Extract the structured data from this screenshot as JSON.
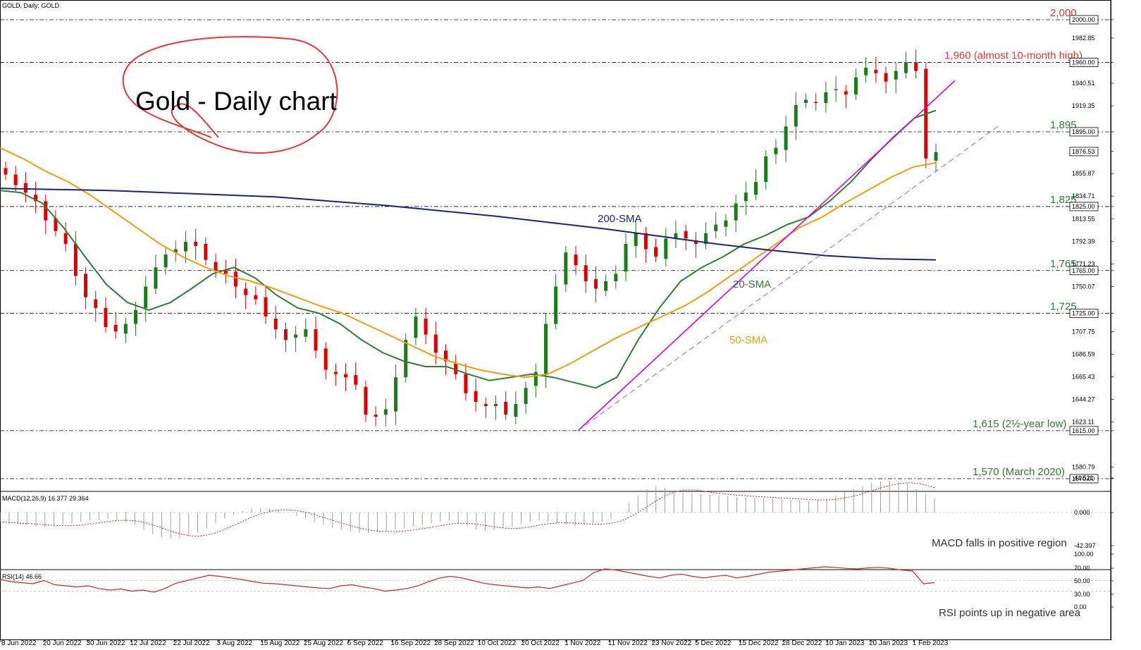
{
  "header": {
    "symbol_caption": "GOLD, Daily:  GOLD"
  },
  "chart_data": {
    "type": "candlestick",
    "title": "Gold - Daily chart",
    "price_axis": {
      "ylim": [
        1565,
        2010
      ],
      "tick_labels": [
        "2000.00",
        "1982.85",
        "1960.00",
        "1940.51",
        "1919.35",
        "1895.00",
        "1876.53",
        "1855.87",
        "1834.71",
        "1825.00",
        "1813.55",
        "1792.39",
        "1771.23",
        "1765.00",
        "1750.07",
        "1725.00",
        "1707.75",
        "1686.59",
        "1665.43",
        "1644.27",
        "1623.11",
        "1615.00",
        "1580.79",
        "1570.00"
      ],
      "tick_values": [
        2000,
        1982.85,
        1960,
        1940.51,
        1919.35,
        1895,
        1876.53,
        1855.87,
        1834.71,
        1825,
        1813.55,
        1792.39,
        1771.23,
        1765,
        1750.07,
        1725,
        1707.75,
        1686.59,
        1665.43,
        1644.27,
        1623.11,
        1615,
        1580.79,
        1570
      ],
      "highlighted": [
        "2000.00",
        "1960.00",
        "1895.00",
        "1876.53",
        "1825.00",
        "1765.00",
        "1725.00",
        "1615.00",
        "1570.00"
      ]
    },
    "x_axis": {
      "date_labels": [
        "8 Jun 2022",
        "20 Jun 2022",
        "30 Jun 2022",
        "12 Jul 2022",
        "22 Jul 2022",
        "3 Aug 2022",
        "15 Aug 2022",
        "25 Aug 2022",
        "6 Sep 2022",
        "16 Sep 2022",
        "28 Sep 2022",
        "10 Oct 2022",
        "20 Oct 2022",
        "1 Nov 2022",
        "11 Nov 2022",
        "23 Nov 2022",
        "5 Dec 2022",
        "15 Dec 2022",
        "28 Dec 2022",
        "10 Jan 2023",
        "20 Jan 2023",
        "1 Feb 2023"
      ]
    },
    "levels": [
      {
        "value": 2000,
        "label": "2,000",
        "color": "#e53935"
      },
      {
        "value": 1960,
        "label": "1,960 (almost 10-month high)",
        "color": "#e53935"
      },
      {
        "value": 1895,
        "label": "1,895",
        "color": "#2e7d32"
      },
      {
        "value": 1825,
        "label": "1,825",
        "color": "#2e7d32"
      },
      {
        "value": 1765,
        "label": "1,765",
        "color": "#2e7d32"
      },
      {
        "value": 1725,
        "label": "1,725",
        "color": "#2e7d32"
      },
      {
        "value": 1615,
        "label": "1,615 (2½-year low)",
        "color": "#2e7d32"
      },
      {
        "value": 1570,
        "label": "1,570 (March 2020)",
        "color": "#2e7d32"
      }
    ],
    "close_path": [
      1855,
      1845,
      1838,
      1830,
      1812,
      1802,
      1790,
      1760,
      1740,
      1730,
      1712,
      1708,
      1715,
      1728,
      1750,
      1768,
      1780,
      1785,
      1792,
      1788,
      1775,
      1765,
      1762,
      1750,
      1742,
      1738,
      1722,
      1710,
      1700,
      1705,
      1710,
      1690,
      1672,
      1668,
      1665,
      1658,
      1630,
      1628,
      1635,
      1665,
      1700,
      1722,
      1705,
      1688,
      1680,
      1668,
      1650,
      1642,
      1638,
      1640,
      1630,
      1640,
      1655,
      1670,
      1715,
      1750,
      1782,
      1770,
      1755,
      1748,
      1755,
      1762,
      1790,
      1800,
      1785,
      1778,
      1795,
      1800,
      1795,
      1790,
      1800,
      1808,
      1812,
      1828,
      1838,
      1848,
      1872,
      1880,
      1900,
      1920,
      1925,
      1922,
      1932,
      1935,
      1930,
      1946,
      1955,
      1950,
      1942,
      1952,
      1960,
      1952,
      1870,
      1876
    ],
    "series": [
      {
        "name": "20-SMA",
        "color": "#2e7d32",
        "values": [
          1840,
          1838,
          1828,
          1805,
          1778,
          1752,
          1735,
          1728,
          1735,
          1748,
          1762,
          1768,
          1758,
          1742,
          1730,
          1725,
          1715,
          1700,
          1688,
          1680,
          1675,
          1675,
          1668,
          1662,
          1665,
          1668,
          1665,
          1660,
          1655,
          1665,
          1700,
          1730,
          1755,
          1768,
          1778,
          1790,
          1798,
          1808,
          1815,
          1830,
          1848,
          1870,
          1890,
          1908,
          1915
        ]
      },
      {
        "name": "50-SMA",
        "color": "#f39c12",
        "values": [
          1880,
          1870,
          1858,
          1848,
          1835,
          1820,
          1805,
          1790,
          1778,
          1768,
          1760,
          1755,
          1748,
          1740,
          1732,
          1725,
          1715,
          1705,
          1695,
          1685,
          1678,
          1672,
          1668,
          1665,
          1668,
          1678,
          1690,
          1702,
          1712,
          1722,
          1732,
          1745,
          1760,
          1775,
          1790,
          1805,
          1815,
          1828,
          1840,
          1852,
          1862,
          1866
        ]
      },
      {
        "name": "200-SMA",
        "color": "#1a237e",
        "values": [
          1842,
          1841,
          1840,
          1838,
          1836,
          1834,
          1830,
          1826,
          1821,
          1816,
          1810,
          1804,
          1797,
          1790,
          1784,
          1779,
          1776,
          1775
        ]
      }
    ],
    "trendlines": [
      {
        "name": "magenta",
        "color": "#e000e0",
        "from": [
          "1 Nov 2022",
          1615
        ],
        "to": [
          "1 Feb 2023+",
          1940
        ]
      },
      {
        "name": "dashed",
        "color": "#c060c0",
        "from": [
          "1 Nov 2022",
          1615
        ],
        "to": [
          "after Feb 2023",
          1905
        ]
      }
    ],
    "annotations": {
      "sma200": "200-SMA",
      "sma20": "20-SMA",
      "sma50": "50-SMA"
    }
  },
  "macd": {
    "title": "MACD(12,26,9) 16.377 29.364",
    "ticks": [
      "44.521",
      "0.000",
      "-42.397"
    ],
    "annotation": "MACD falls in positive region",
    "histogram": [
      -12,
      -14,
      -15,
      -16,
      -18,
      -19,
      -18,
      -16,
      -14,
      -12,
      -10,
      -9,
      -8,
      -9,
      -12,
      -16,
      -22,
      -28,
      -32,
      -34,
      -33,
      -30,
      -26,
      -20,
      -14,
      -8,
      -2,
      2,
      5,
      6,
      5,
      3,
      0,
      -4,
      -8,
      -12,
      -16,
      -20,
      -22,
      -24,
      -26,
      -26,
      -25,
      -24,
      -22,
      -20,
      -18,
      -16,
      -14,
      -12,
      -10,
      -14,
      -18,
      -22,
      -24,
      -22,
      -20,
      -18,
      -15,
      -12,
      -10,
      -12,
      -14,
      -16,
      -18,
      -16,
      -14,
      -12,
      -8,
      0,
      12,
      22,
      30,
      34,
      32,
      28,
      26,
      25,
      24,
      23,
      22,
      21,
      20,
      20,
      19,
      19,
      18,
      17,
      16,
      16,
      15,
      16,
      18,
      22,
      26,
      30,
      34,
      38,
      40,
      41,
      40,
      38,
      30,
      24,
      18
    ]
  },
  "rsi": {
    "title": "RSI(14) 46.66",
    "ticks": [
      "100.00",
      "70.00",
      "50.00",
      "30.00",
      "0.00"
    ],
    "annotation": "RSI points up in negative area",
    "values": [
      52,
      48,
      46,
      44,
      50,
      42,
      40,
      38,
      40,
      35,
      32,
      34,
      30,
      32,
      28,
      35,
      45,
      50,
      55,
      60,
      58,
      55,
      52,
      48,
      45,
      44,
      42,
      40,
      38,
      36,
      35,
      40,
      42,
      38,
      35,
      30,
      32,
      35,
      40,
      48,
      55,
      58,
      55,
      50,
      45,
      42,
      40,
      38,
      36,
      38,
      35,
      40,
      45,
      50,
      65,
      72,
      70,
      66,
      62,
      58,
      55,
      60,
      62,
      58,
      55,
      58,
      60,
      55,
      58,
      62,
      66,
      68,
      70,
      72,
      74,
      76,
      75,
      73,
      72,
      74,
      75,
      73,
      70,
      68,
      44,
      46
    ]
  }
}
